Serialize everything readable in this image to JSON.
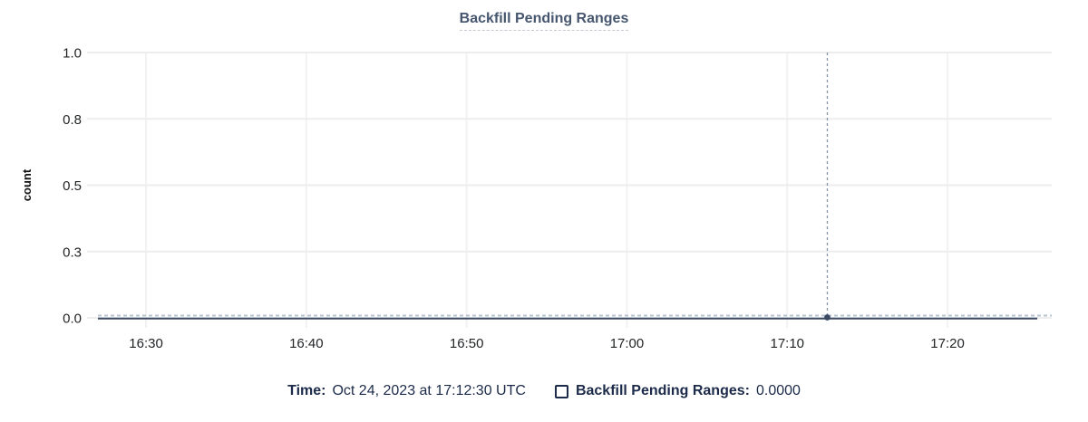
{
  "header": {
    "title": "Backfill Pending Ranges"
  },
  "legend": {
    "time_label": "Time:",
    "time_value": "Oct 24, 2023 at 17:12:30 UTC",
    "series_checkbox_checked": false,
    "series_label": "Backfill Pending Ranges:",
    "series_value": "0.0000"
  },
  "colors": {
    "title_text": "#46566f",
    "title_underline": "#c6c9d1",
    "legend_text": "#1c2b4a",
    "series_line": "#3b4a63",
    "zero_guide": "#b7c3d1",
    "crosshair": "#8495aa",
    "grid_line": "#ededed",
    "grid_line_vertical": "#f2f2f2",
    "axis_text": "#222426"
  },
  "chart_data": {
    "type": "line",
    "title": "Backfill Pending Ranges",
    "xlabel": "",
    "ylabel": "count",
    "ylim": [
      0,
      1
    ],
    "grid": true,
    "legend_position": "bottom",
    "y_ticks": [
      {
        "value": 0,
        "label": "0.0"
      },
      {
        "value": 0.25,
        "label": "0.3"
      },
      {
        "value": 0.5,
        "label": "0.5"
      },
      {
        "value": 0.75,
        "label": "0.8"
      },
      {
        "value": 1,
        "label": "1.0"
      }
    ],
    "x_axis": {
      "unit": "time-of-day",
      "domain_minutes": [
        987.0,
        1046.5
      ],
      "ticks": [
        {
          "minute": 990,
          "label": "16:30"
        },
        {
          "minute": 1000,
          "label": "16:40"
        },
        {
          "minute": 1010,
          "label": "16:50"
        },
        {
          "minute": 1020,
          "label": "17:00"
        },
        {
          "minute": 1030,
          "label": "17:10"
        },
        {
          "minute": 1040,
          "label": "17:20"
        }
      ]
    },
    "series": [
      {
        "name": "Backfill Pending Ranges",
        "value_constant": 0,
        "x_start_minute": 987.0,
        "x_end_minute": 1045.6
      }
    ],
    "crosshair": {
      "minute": 1032.5,
      "time_label": "17:12:30",
      "value": 0
    }
  }
}
